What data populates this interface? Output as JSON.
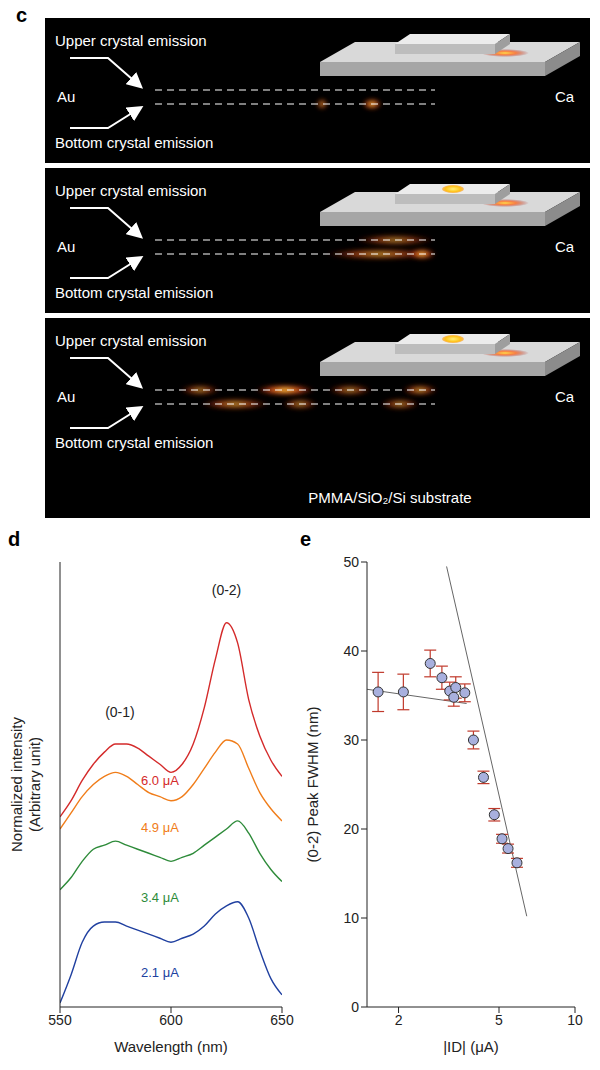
{
  "panel_c": {
    "panel": "c",
    "frames": [
      {
        "upper_label": "Upper crystal emission",
        "bottom_label": "Bottom crystal emission",
        "left_electrode": "Au",
        "right_electrode": "Ca"
      },
      {
        "upper_label": "Upper crystal emission",
        "bottom_label": "Bottom crystal emission",
        "left_electrode": "Au",
        "right_electrode": "Ca"
      },
      {
        "upper_label": "Upper crystal emission",
        "bottom_label": "Bottom crystal emission",
        "left_electrode": "Au",
        "right_electrode": "Ca"
      }
    ],
    "substrate": "PMMA/SiO₂/Si substrate"
  },
  "chart_data": [
    {
      "panel": "d",
      "type": "line",
      "xlabel": "Wavelength (nm)",
      "ylabel": "Normalized intensity (Arbitrary unit)",
      "x": [
        550,
        555,
        560,
        565,
        570,
        575,
        580,
        585,
        590,
        595,
        600,
        605,
        610,
        615,
        620,
        625,
        630,
        635,
        640,
        645,
        650
      ],
      "series": [
        {
          "name": "6.0 μA",
          "color": "#d42a2a",
          "values": [
            4.7,
            5.1,
            5.6,
            6.0,
            6.3,
            6.5,
            6.5,
            6.4,
            6.2,
            6.0,
            5.8,
            6.0,
            6.5,
            7.4,
            8.6,
            9.5,
            9.0,
            7.6,
            6.7,
            6.1,
            5.7
          ]
        },
        {
          "name": "4.9 μA",
          "color": "#f07d1a",
          "values": [
            4.4,
            4.8,
            5.2,
            5.5,
            5.7,
            5.8,
            5.7,
            5.5,
            5.3,
            5.2,
            5.1,
            5.2,
            5.5,
            5.9,
            6.3,
            6.6,
            6.5,
            5.9,
            5.3,
            4.9,
            4.6
          ]
        },
        {
          "name": "3.4 μA",
          "color": "#2e8b3a",
          "values": [
            2.9,
            3.2,
            3.6,
            3.9,
            4.0,
            4.1,
            4.0,
            3.9,
            3.8,
            3.7,
            3.6,
            3.7,
            3.8,
            4.0,
            4.2,
            4.4,
            4.6,
            4.3,
            3.8,
            3.4,
            3.1
          ]
        },
        {
          "name": "2.1 μA",
          "color": "#2040a0",
          "values": [
            0.1,
            0.8,
            1.6,
            2.0,
            2.1,
            2.1,
            2.0,
            1.9,
            1.8,
            1.7,
            1.6,
            1.7,
            1.8,
            2.0,
            2.3,
            2.5,
            2.6,
            2.2,
            1.4,
            0.7,
            0.3
          ]
        }
      ],
      "xlim": [
        550,
        650
      ],
      "xticks": [
        550,
        600,
        650
      ],
      "ylim": [
        0,
        11
      ],
      "yticks": [],
      "tick_labels": "x",
      "annotations": [
        {
          "text": "(0-1)",
          "x": 577,
          "y": 7.3
        },
        {
          "text": "(0-2)",
          "x": 625,
          "y": 10.3
        }
      ]
    },
    {
      "panel": "e",
      "type": "scatter",
      "xlabel": "|ID| (μA)",
      "ylabel": "(0-2) Peak FWHM (nm)",
      "log": "x",
      "x": [
        1.66,
        2.09,
        2.67,
        2.97,
        3.19,
        3.31,
        3.37,
        3.66,
        3.96,
        4.34,
        4.79,
        5.14,
        5.43,
        5.89
      ],
      "values": [
        35.4,
        35.4,
        38.6,
        37.0,
        35.5,
        34.8,
        35.9,
        35.3,
        30.0,
        25.8,
        21.6,
        18.9,
        17.8,
        16.2
      ],
      "errors": [
        2.2,
        2.0,
        1.5,
        1.3,
        1.0,
        1.0,
        1.2,
        1.0,
        1.0,
        0.7,
        0.7,
        0.5,
        0.5,
        0.5
      ],
      "xlim": [
        1.5,
        10
      ],
      "xticks": [
        2,
        5,
        10
      ],
      "ylim": [
        0,
        50
      ],
      "yticks": [
        0,
        10,
        20,
        30,
        40,
        50
      ],
      "color": "#a8b0de",
      "marker": "circle",
      "fits": [
        {
          "x": [
            1.5,
            3.72
          ],
          "values": [
            35.7,
            34.1
          ]
        },
        {
          "x": [
            3.1,
            6.44
          ],
          "values": [
            49.5,
            10.2
          ]
        }
      ]
    }
  ]
}
